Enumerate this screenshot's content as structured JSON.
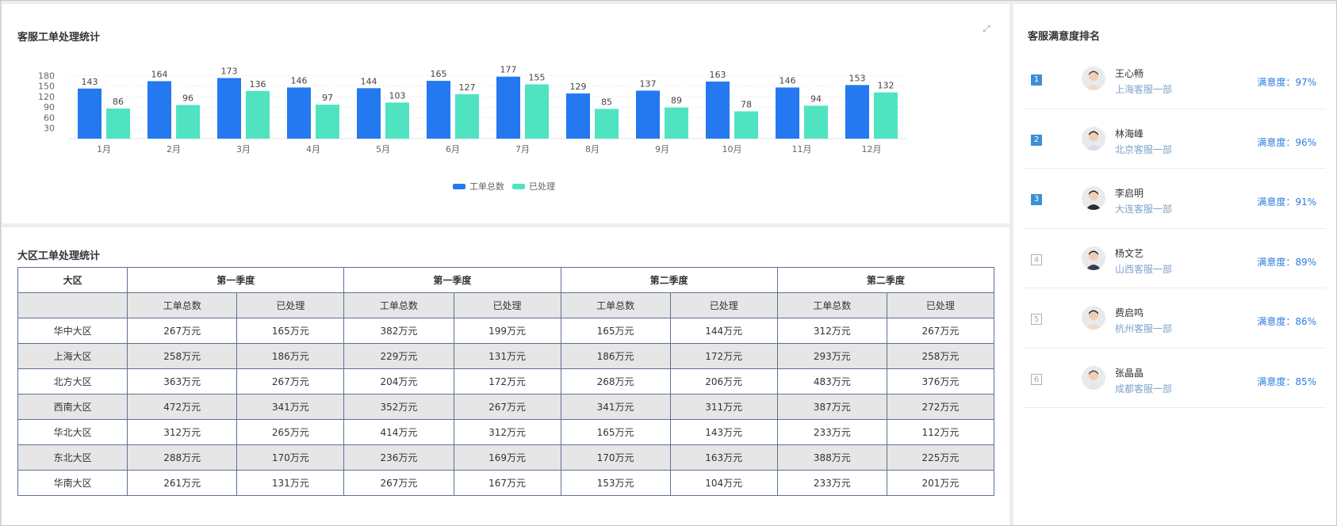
{
  "chart_section": {
    "title": "客服工单处理统计",
    "expand_icon": "expand-icon"
  },
  "chart_data": {
    "type": "bar",
    "categories": [
      "1月",
      "2月",
      "3月",
      "4月",
      "5月",
      "6月",
      "7月",
      "8月",
      "9月",
      "10月",
      "11月",
      "12月"
    ],
    "series": [
      {
        "name": "工单总数",
        "color": "#2478f0",
        "values": [
          143,
          164,
          173,
          146,
          144,
          165,
          177,
          129,
          137,
          163,
          146,
          153
        ]
      },
      {
        "name": "已处理",
        "color": "#50e3c2",
        "values": [
          86,
          96,
          136,
          97,
          103,
          127,
          155,
          85,
          89,
          78,
          94,
          132
        ]
      }
    ],
    "yticks": [
      30,
      60,
      90,
      120,
      150,
      180
    ],
    "ylim": [
      0,
      190
    ],
    "legend": "bottom-center",
    "grid": true
  },
  "table_section": {
    "title": "大区工单处理统计",
    "headers": [
      "大区",
      "第一季度",
      "第一季度",
      "第二季度",
      "第二季度"
    ],
    "sub_headers": [
      "",
      "工单总数",
      "已处理",
      "工单总数",
      "已处理",
      "工单总数",
      "已处理",
      "工单总数",
      "已处理"
    ],
    "rows": [
      [
        "华中大区",
        "267万元",
        "165万元",
        "382万元",
        "199万元",
        "165万元",
        "144万元",
        "312万元",
        "267万元"
      ],
      [
        "上海大区",
        "258万元",
        "186万元",
        "229万元",
        "131万元",
        "186万元",
        "172万元",
        "293万元",
        "258万元"
      ],
      [
        "北方大区",
        "363万元",
        "267万元",
        "204万元",
        "172万元",
        "268万元",
        "206万元",
        "483万元",
        "376万元"
      ],
      [
        "西南大区",
        "472万元",
        "341万元",
        "352万元",
        "267万元",
        "341万元",
        "311万元",
        "387万元",
        "272万元"
      ],
      [
        "华北大区",
        "312万元",
        "265万元",
        "414万元",
        "312万元",
        "165万元",
        "143万元",
        "233万元",
        "112万元"
      ],
      [
        "东北大区",
        "288万元",
        "170万元",
        "236万元",
        "169万元",
        "170万元",
        "163万元",
        "388万元",
        "225万元"
      ],
      [
        "华南大区",
        "261万元",
        "131万元",
        "267万元",
        "167万元",
        "153万元",
        "104万元",
        "233万元",
        "201万元"
      ]
    ]
  },
  "ranking": {
    "title": "客服满意度排名",
    "items": [
      {
        "rank": "1",
        "name": "王心畅",
        "dept": "上海客服一部",
        "score": "满意度：97%"
      },
      {
        "rank": "2",
        "name": "林海峰",
        "dept": "北京客服一部",
        "score": "满意度：96%"
      },
      {
        "rank": "3",
        "name": "李启明",
        "dept": "大连客服一部",
        "score": "满意度：91%"
      },
      {
        "rank": "4",
        "name": "杨文艺",
        "dept": "山西客服一部",
        "score": "满意度：89%"
      },
      {
        "rank": "5",
        "name": "费启鸣",
        "dept": "杭州客服一部",
        "score": "满意度：86%"
      },
      {
        "rank": "6",
        "name": "张晶晶",
        "dept": "成都客服一部",
        "score": "满意度：85%"
      }
    ]
  }
}
